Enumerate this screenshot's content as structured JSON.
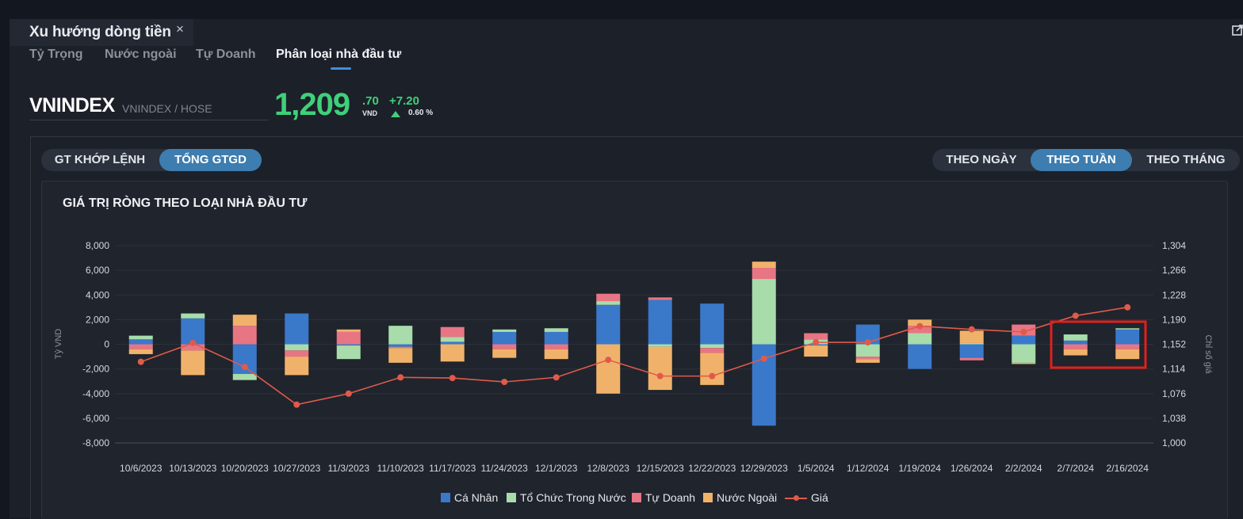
{
  "window": {
    "title": "Xu hướng dòng tiền"
  },
  "subtabs": [
    "Tỷ Trọng",
    "Nước ngoài",
    "Tự Doanh",
    "Phân loại nhà đầu tư"
  ],
  "active_subtab": "Phân loại nhà đầu tư",
  "quote": {
    "symbol": "VNINDEX",
    "symbol_sub": "VNINDEX / HOSE",
    "price_main": "1,209",
    "price_decimal": ".70",
    "unit": "VND",
    "change": "+7.20",
    "change_pct": "0.60 %"
  },
  "value_toggle": {
    "options": [
      "GT KHỚP LỆNH",
      "TỔNG GTGD"
    ],
    "selected": "TỔNG GTGD"
  },
  "period_toggle": {
    "options": [
      "THEO NGÀY",
      "THEO TUẦN",
      "THEO THÁNG"
    ],
    "selected": "THEO TUẦN"
  },
  "colors": {
    "up": "#3fd07a",
    "accent": "#3d7db0",
    "highlight": "#e0201c"
  },
  "chart_data": {
    "type": "bar",
    "title": "GIÁ TRỊ RÒNG THEO LOẠI NHÀ ĐẦU TƯ",
    "ylabel": "Tỷ VND",
    "y2label": "Chỉ số giá",
    "ylim": [
      -8000,
      8000
    ],
    "y_ticks": [
      "8,000",
      "6,000",
      "4,000",
      "2,000",
      "0",
      "-2,000",
      "-4,000",
      "-6,000",
      "-8,000"
    ],
    "y2lim": [
      1000,
      1304
    ],
    "y2_ticks": [
      "1,304",
      "1,266",
      "1,228",
      "1,190",
      "1,152",
      "1,114",
      "1,076",
      "1,038",
      "1,000"
    ],
    "stacked": true,
    "grid": true,
    "legend_position": "bottom",
    "categories": [
      "10/6/2023",
      "10/13/2023",
      "10/20/2023",
      "10/27/2023",
      "11/3/2023",
      "11/10/2023",
      "11/17/2023",
      "11/24/2023",
      "12/1/2023",
      "12/8/2023",
      "12/15/2023",
      "12/22/2023",
      "12/29/2023",
      "1/5/2024",
      "1/12/2024",
      "1/19/2024",
      "1/26/2024",
      "2/2/2024",
      "2/7/2024",
      "2/16/2024"
    ],
    "series": [
      {
        "name": "Cá Nhân",
        "color": "#3a78c9",
        "values": [
          400,
          2100,
          -2400,
          2500,
          -100,
          -200,
          200,
          1000,
          1000,
          3200,
          3600,
          3300,
          -6600,
          -100,
          1600,
          -2000,
          -1100,
          700,
          300,
          1200
        ]
      },
      {
        "name": "Tổ Chức Trong Nước",
        "color": "#a8dcaa",
        "values": [
          300,
          400,
          -500,
          -500,
          -1100,
          1500,
          400,
          200,
          300,
          300,
          -200,
          -300,
          5300,
          400,
          -1000,
          900,
          100,
          -1500,
          500,
          100
        ]
      },
      {
        "name": "Tự Doanh",
        "color": "#e87583",
        "values": [
          -400,
          -500,
          1500,
          -500,
          1000,
          -100,
          800,
          -400,
          -400,
          600,
          200,
          -400,
          900,
          500,
          -200,
          600,
          -200,
          900,
          -400,
          -400
        ]
      },
      {
        "name": "Nước Ngoài",
        "color": "#f0b26a",
        "values": [
          -400,
          -2000,
          900,
          -1500,
          200,
          -1200,
          -1400,
          -700,
          -800,
          -4000,
          -3500,
          -2600,
          500,
          -900,
          -300,
          500,
          1000,
          -100,
          -500,
          -800
        ]
      }
    ],
    "line": {
      "name": "Giá",
      "color": "#e05a4a",
      "axis": "y2",
      "values": [
        1125,
        1154,
        1117,
        1059,
        1076,
        1101,
        1100,
        1094,
        1101,
        1128,
        1103,
        1103,
        1130,
        1155,
        1155,
        1180,
        1175,
        1171,
        1196,
        1209
      ]
    },
    "highlight_categories": [
      "2/7/2024",
      "2/16/2024"
    ]
  }
}
